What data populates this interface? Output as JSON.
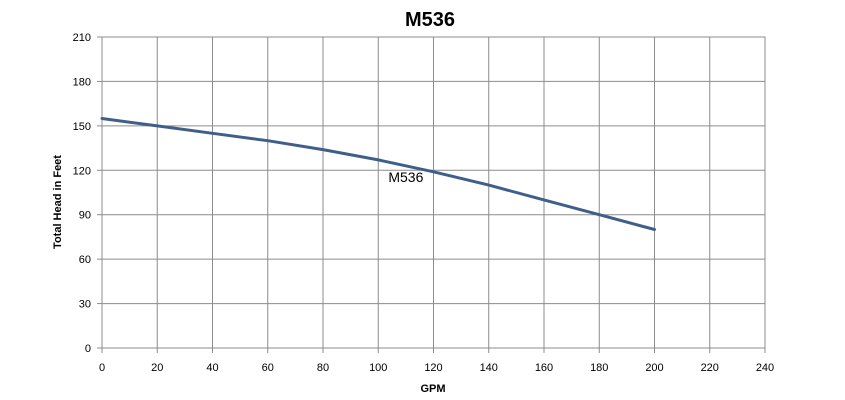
{
  "chart_data": {
    "type": "line",
    "title": "M536",
    "xlabel": "GPM",
    "ylabel": "Total Head in Feet",
    "xlim": [
      0,
      240
    ],
    "ylim": [
      0,
      210
    ],
    "xticks": [
      "0",
      "20",
      "40",
      "60",
      "80",
      "100",
      "120",
      "140",
      "160",
      "180",
      "200",
      "220",
      "240"
    ],
    "yticks": [
      "0",
      "30",
      "60",
      "90",
      "120",
      "150",
      "180",
      "210"
    ],
    "grid": true,
    "legend": "none",
    "series": [
      {
        "name": "M536",
        "color": "#3f5f8a",
        "x": [
          0,
          20,
          40,
          60,
          80,
          100,
          120,
          140,
          160,
          180,
          200
        ],
        "y": [
          155,
          150,
          145,
          140,
          134,
          127,
          119,
          110,
          100,
          90,
          80
        ]
      }
    ],
    "annotations": [
      {
        "text": "M536",
        "x": 110,
        "y": 112
      }
    ]
  }
}
